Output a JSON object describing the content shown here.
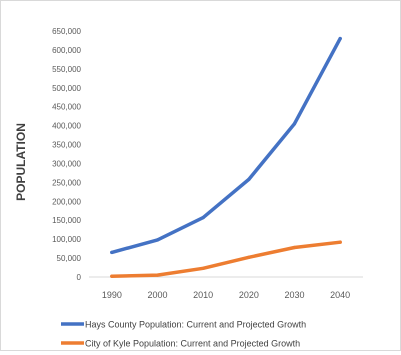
{
  "chart_data": {
    "type": "line",
    "categories": [
      "1990",
      "2000",
      "2010",
      "2020",
      "2030",
      "2040"
    ],
    "ylabel": "POPULATION",
    "ylim": [
      0,
      650000
    ],
    "y_ticks": [
      "0",
      "50,000",
      "100,000",
      "150,000",
      "200,000",
      "250,000",
      "300,000",
      "350,000",
      "400,000",
      "450,000",
      "500,000",
      "550,000",
      "600,000",
      "650,000"
    ],
    "grid": false,
    "legend_position": "bottom",
    "series": [
      {
        "name": "Hays County Population: Current and Projected Growth",
        "color": "#4472c4",
        "values": [
          65000,
          98000,
          157000,
          258000,
          405000,
          630000
        ]
      },
      {
        "name": "City of Kyle Population: Current and Projected Growth",
        "color": "#ed7d31",
        "values": [
          2000,
          5000,
          23000,
          52000,
          78000,
          92000
        ]
      }
    ]
  }
}
